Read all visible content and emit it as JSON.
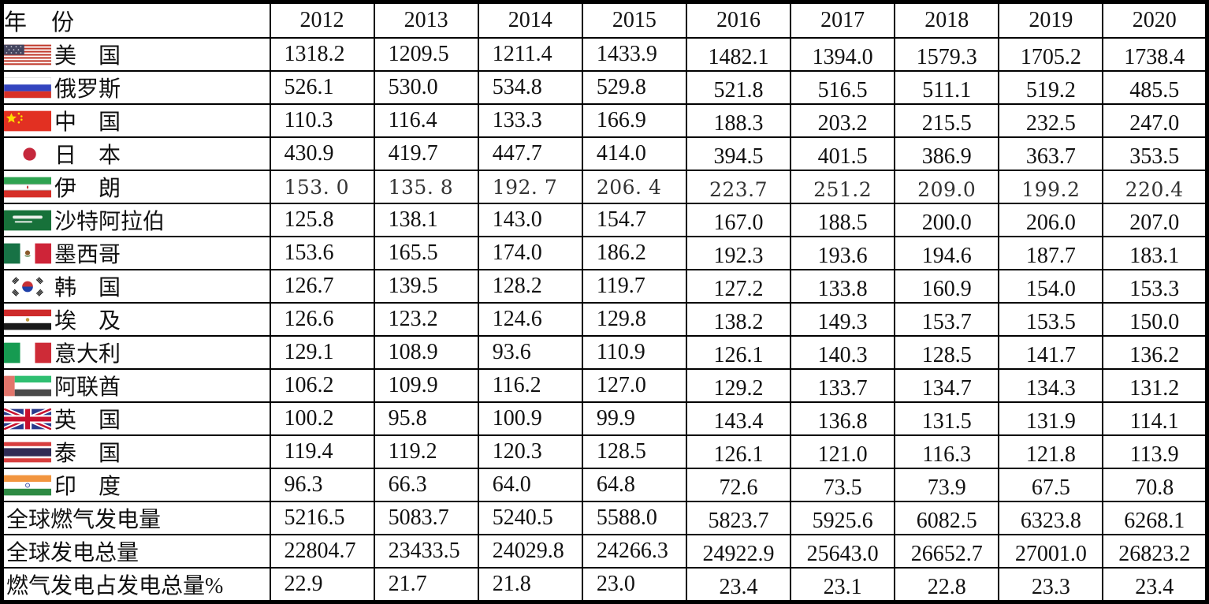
{
  "table": {
    "header": {
      "label": "年　份",
      "years": [
        "2012",
        "2013",
        "2014",
        "2015",
        "2016",
        "2017",
        "2018",
        "2019",
        "2020"
      ]
    },
    "rows": [
      {
        "flag": "us",
        "label": "美　国",
        "values": [
          "1318.2",
          "1209.5",
          "1211.4",
          "1433.9",
          "1482.1",
          "1394.0",
          "1579.3",
          "1705.2",
          "1738.4"
        ]
      },
      {
        "flag": "ru",
        "label": "俄罗斯",
        "values": [
          "526.1",
          "530.0",
          "534.8",
          "529.8",
          "521.8",
          "516.5",
          "511.1",
          "519.2",
          "485.5"
        ]
      },
      {
        "flag": "cn",
        "label": "中　国",
        "values": [
          "110.3",
          "116.4",
          "133.3",
          "166.9",
          "188.3",
          "203.2",
          "215.5",
          "232.5",
          "247.0"
        ]
      },
      {
        "flag": "jp",
        "label": "日　本",
        "values": [
          "430.9",
          "419.7",
          "447.7",
          "414.0",
          "394.5",
          "401.5",
          "386.9",
          "363.7",
          "353.5"
        ]
      },
      {
        "flag": "ir",
        "label": "伊　朗",
        "values": [
          "153. 0",
          "135. 8",
          "192. 7",
          "206. 4",
          "223.7",
          "251.2",
          "209.0",
          "199.2",
          "220.4"
        ]
      },
      {
        "flag": "sa",
        "label": "沙特阿拉伯",
        "values": [
          "125.8",
          "138.1",
          "143.0",
          "154.7",
          "167.0",
          "188.5",
          "200.0",
          "206.0",
          "207.0"
        ]
      },
      {
        "flag": "mx",
        "label": "墨西哥",
        "values": [
          "153.6",
          "165.5",
          "174.0",
          "186.2",
          "192.3",
          "193.6",
          "194.6",
          "187.7",
          "183.1"
        ]
      },
      {
        "flag": "kr",
        "label": "韩　国",
        "values": [
          "126.7",
          "139.5",
          "128.2",
          "119.7",
          "127.2",
          "133.8",
          "160.9",
          "154.0",
          "153.3"
        ]
      },
      {
        "flag": "eg",
        "label": "埃　及",
        "values": [
          "126.6",
          "123.2",
          "124.6",
          "129.8",
          "138.2",
          "149.3",
          "153.7",
          "153.5",
          "150.0"
        ]
      },
      {
        "flag": "it",
        "label": "意大利",
        "values": [
          "129.1",
          "108.9",
          "93.6",
          "110.9",
          "126.1",
          "140.3",
          "128.5",
          "141.7",
          "136.2"
        ]
      },
      {
        "flag": "ae",
        "label": "阿联酋",
        "values": [
          "106.2",
          "109.9",
          "116.2",
          "127.0",
          "129.2",
          "133.7",
          "134.7",
          "134.3",
          "131.2"
        ]
      },
      {
        "flag": "gb",
        "label": "英　国",
        "values": [
          "100.2",
          "95.8",
          "100.9",
          "99.9",
          "143.4",
          "136.8",
          "131.5",
          "131.9",
          "114.1"
        ]
      },
      {
        "flag": "th",
        "label": "泰　国",
        "values": [
          "119.4",
          "119.2",
          "120.3",
          "128.5",
          "126.1",
          "121.0",
          "116.3",
          "121.8",
          "113.9"
        ]
      },
      {
        "flag": "in",
        "label": "印　度",
        "values": [
          "96.3",
          "66.3",
          "64.0",
          "64.8",
          "72.6",
          "73.5",
          "73.9",
          "67.5",
          "70.8"
        ]
      },
      {
        "flag": null,
        "label": "全球燃气发电量",
        "values": [
          "5216.5",
          "5083.7",
          "5240.5",
          "5588.0",
          "5823.7",
          "5925.6",
          "6082.5",
          "6323.8",
          "6268.1"
        ]
      },
      {
        "flag": null,
        "label": "全球发电总量",
        "values": [
          "22804.7",
          "23433.5",
          "24029.8",
          "24266.3",
          "24922.9",
          "25643.0",
          "26652.7",
          "27001.0",
          "26823.2"
        ]
      },
      {
        "flag": null,
        "label": "燃气发电占发电总量%",
        "values": [
          "22.9",
          "21.7",
          "21.8",
          "23.0",
          "23.4",
          "23.1",
          "22.8",
          "23.3",
          "23.4"
        ]
      }
    ]
  },
  "chart_data": {
    "type": "table",
    "title": "各国燃气发电量 2012-2020",
    "categories": [
      "2012",
      "2013",
      "2014",
      "2015",
      "2016",
      "2017",
      "2018",
      "2019",
      "2020"
    ],
    "series": [
      {
        "name": "美国",
        "values": [
          1318.2,
          1209.5,
          1211.4,
          1433.9,
          1482.1,
          1394.0,
          1579.3,
          1705.2,
          1738.4
        ]
      },
      {
        "name": "俄罗斯",
        "values": [
          526.1,
          530.0,
          534.8,
          529.8,
          521.8,
          516.5,
          511.1,
          519.2,
          485.5
        ]
      },
      {
        "name": "中国",
        "values": [
          110.3,
          116.4,
          133.3,
          166.9,
          188.3,
          203.2,
          215.5,
          232.5,
          247.0
        ]
      },
      {
        "name": "日本",
        "values": [
          430.9,
          419.7,
          447.7,
          414.0,
          394.5,
          401.5,
          386.9,
          363.7,
          353.5
        ]
      },
      {
        "name": "伊朗",
        "values": [
          153.0,
          135.8,
          192.7,
          206.4,
          223.7,
          251.2,
          209.0,
          199.2,
          220.4
        ]
      },
      {
        "name": "沙特阿拉伯",
        "values": [
          125.8,
          138.1,
          143.0,
          154.7,
          167.0,
          188.5,
          200.0,
          206.0,
          207.0
        ]
      },
      {
        "name": "墨西哥",
        "values": [
          153.6,
          165.5,
          174.0,
          186.2,
          192.3,
          193.6,
          194.6,
          187.7,
          183.1
        ]
      },
      {
        "name": "韩国",
        "values": [
          126.7,
          139.5,
          128.2,
          119.7,
          127.2,
          133.8,
          160.9,
          154.0,
          153.3
        ]
      },
      {
        "name": "埃及",
        "values": [
          126.6,
          123.2,
          124.6,
          129.8,
          138.2,
          149.3,
          153.7,
          153.5,
          150.0
        ]
      },
      {
        "name": "意大利",
        "values": [
          129.1,
          108.9,
          93.6,
          110.9,
          126.1,
          140.3,
          128.5,
          141.7,
          136.2
        ]
      },
      {
        "name": "阿联酋",
        "values": [
          106.2,
          109.9,
          116.2,
          127.0,
          129.2,
          133.7,
          134.7,
          134.3,
          131.2
        ]
      },
      {
        "name": "英国",
        "values": [
          100.2,
          95.8,
          100.9,
          99.9,
          143.4,
          136.8,
          131.5,
          131.9,
          114.1
        ]
      },
      {
        "name": "泰国",
        "values": [
          119.4,
          119.2,
          120.3,
          128.5,
          126.1,
          121.0,
          116.3,
          121.8,
          113.9
        ]
      },
      {
        "name": "印度",
        "values": [
          96.3,
          66.3,
          64.0,
          64.8,
          72.6,
          73.5,
          73.9,
          67.5,
          70.8
        ]
      },
      {
        "name": "全球燃气发电量",
        "values": [
          5216.5,
          5083.7,
          5240.5,
          5588.0,
          5823.7,
          5925.6,
          6082.5,
          6323.8,
          6268.1
        ]
      },
      {
        "name": "全球发电总量",
        "values": [
          22804.7,
          23433.5,
          24029.8,
          24266.3,
          24922.9,
          25643.0,
          26652.7,
          27001.0,
          26823.2
        ]
      },
      {
        "name": "燃气发电占发电总量%",
        "values": [
          22.9,
          21.7,
          21.8,
          23.0,
          23.4,
          23.1,
          22.8,
          23.3,
          23.4
        ]
      }
    ]
  }
}
